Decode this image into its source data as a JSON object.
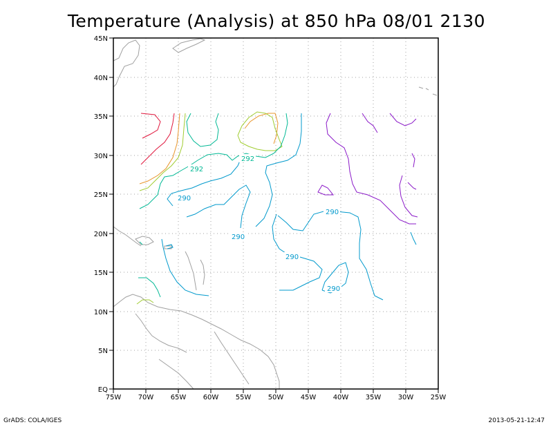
{
  "title": "Temperature (Analysis) at 850 hPa 08/01 2130",
  "axes": {
    "lon_labels": [
      "75W",
      "70W",
      "65W",
      "60W",
      "55W",
      "50W",
      "45W",
      "40W",
      "35W",
      "30W",
      "25W"
    ],
    "lat_labels": [
      "EQ",
      "5N",
      "10N",
      "15N",
      "20N",
      "25N",
      "30N",
      "35N",
      "40N",
      "45N"
    ]
  },
  "contour_labels": [
    {
      "text": "292",
      "color": "#00b894"
    },
    {
      "text": "292",
      "color": "#00b894"
    },
    {
      "text": "290",
      "color": "#0099cc"
    },
    {
      "text": "290",
      "color": "#0099cc"
    },
    {
      "text": "290",
      "color": "#0099cc"
    },
    {
      "text": "290",
      "color": "#0099cc"
    },
    {
      "text": "290",
      "color": "#0099cc"
    }
  ],
  "colors": {
    "land": "#a0a0a0",
    "grid": "#a0a0a0",
    "c_red": "#e0163c",
    "c_orange": "#e8942a",
    "c_yellowgreen": "#a0cc30",
    "c_green": "#00b894",
    "c_blue": "#0099cc",
    "c_purple": "#8a18c8"
  },
  "footer": {
    "left": "GrADS: COLA/IGES",
    "right": "2013-05-21-12:47"
  }
}
